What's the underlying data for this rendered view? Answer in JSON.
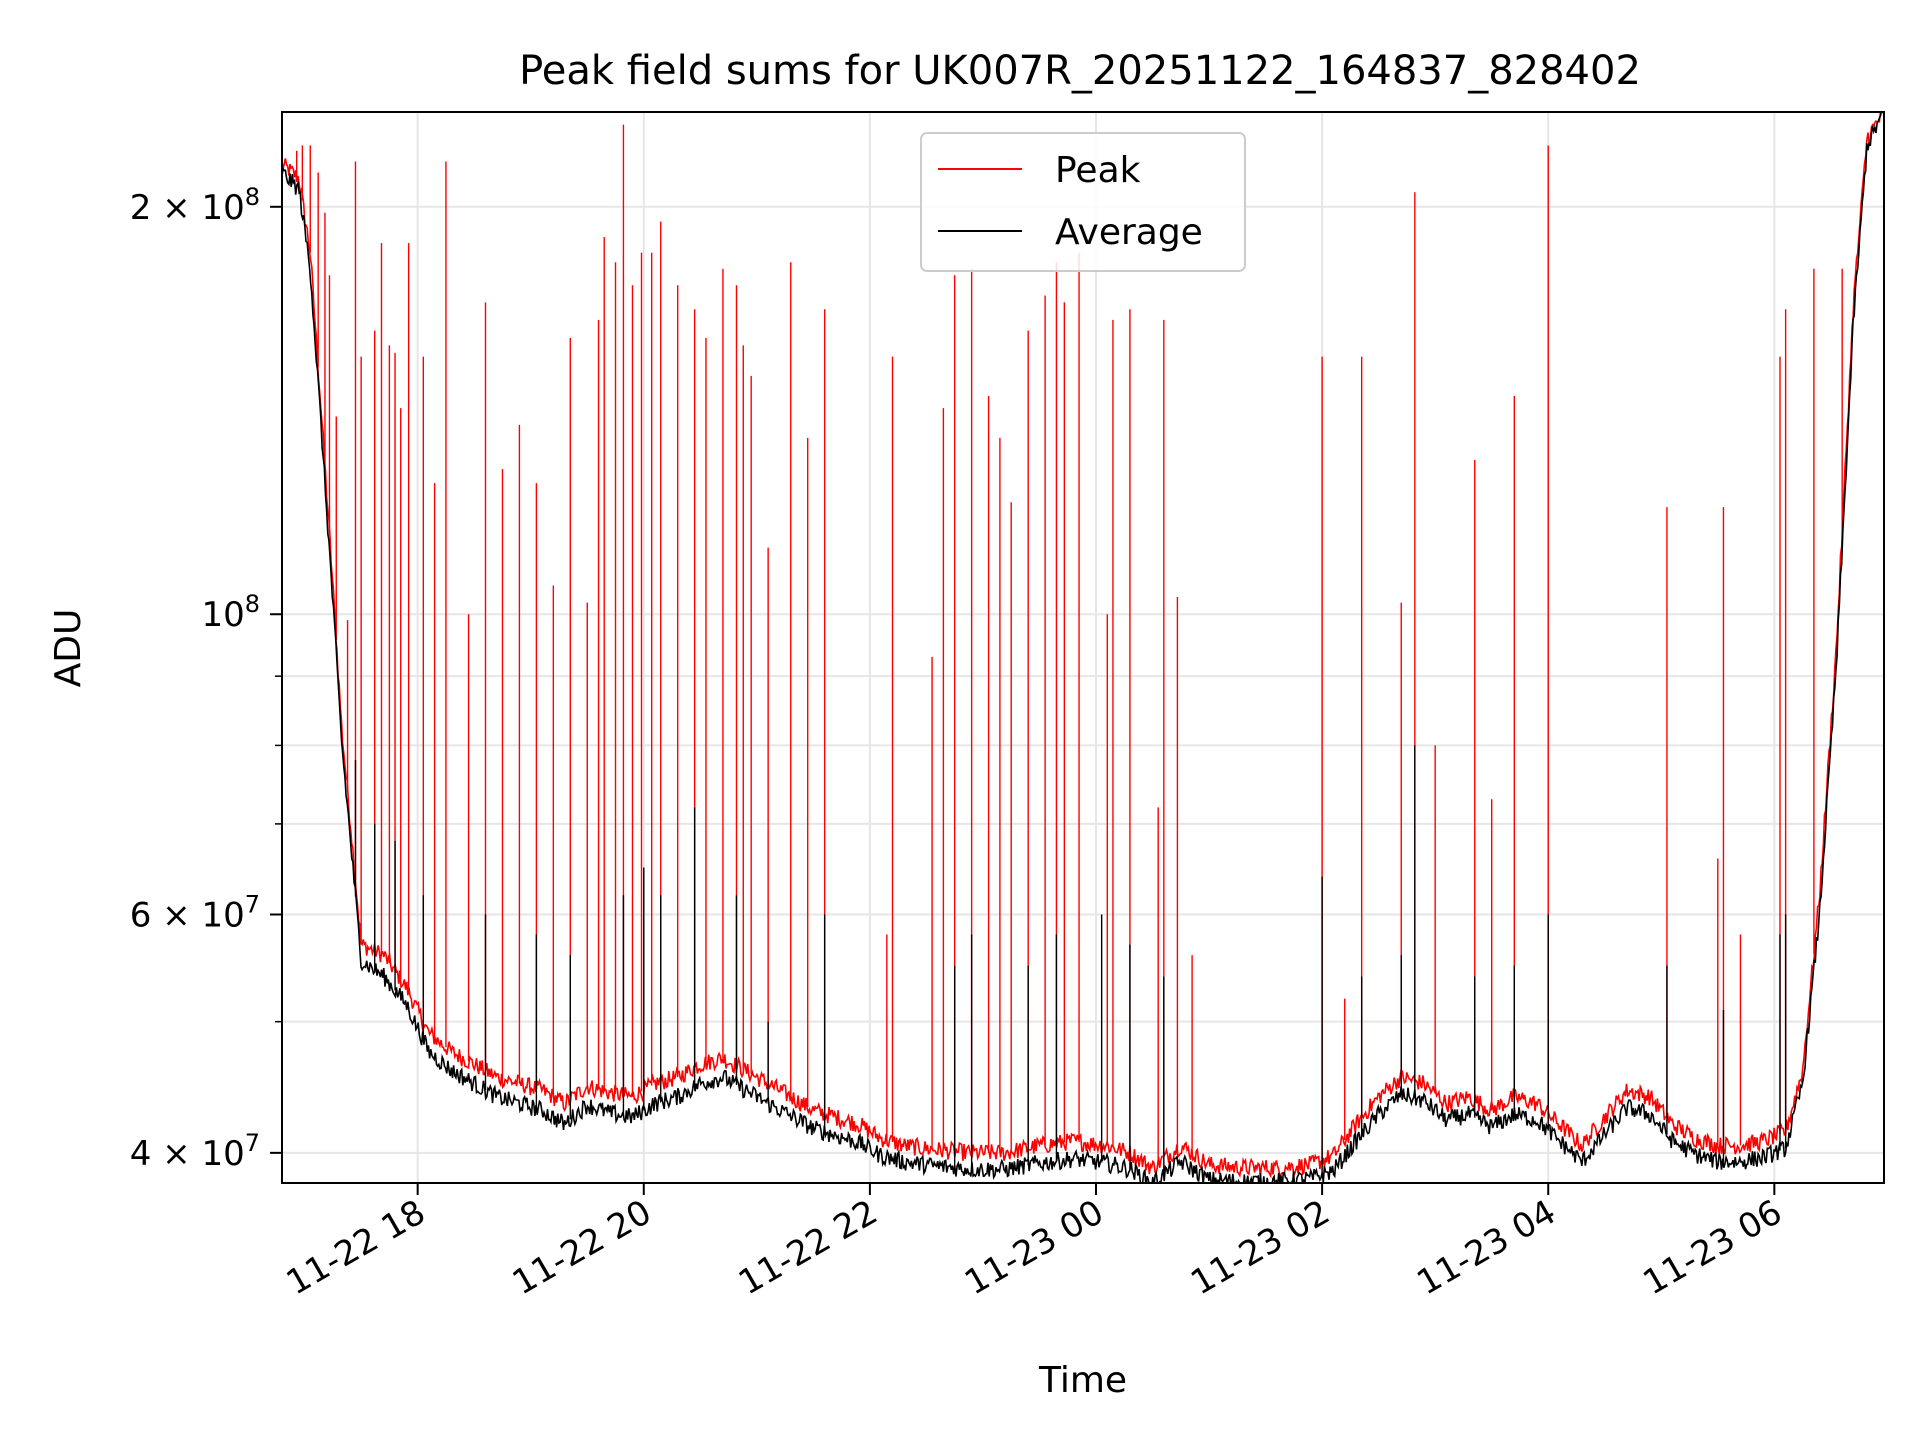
{
  "chart_data": {
    "type": "line",
    "title": "Peak field sums for UK007R_20251122_164837_828402",
    "xlabel": "Time",
    "ylabel": "ADU",
    "yscale": "log",
    "ylim": [
      38000000,
      235000000
    ],
    "xlim_hours": [
      16.8,
      30.97
    ],
    "grid": true,
    "legend_position": "top-center",
    "x_ticks": [
      {
        "hour": 18,
        "label": "11-22 18"
      },
      {
        "hour": 20,
        "label": "11-22 20"
      },
      {
        "hour": 22,
        "label": "11-22 22"
      },
      {
        "hour": 24,
        "label": "11-23 00"
      },
      {
        "hour": 26,
        "label": "11-23 02"
      },
      {
        "hour": 28,
        "label": "11-23 04"
      },
      {
        "hour": 30,
        "label": "11-23 06"
      }
    ],
    "y_major_ticks": [
      {
        "value": 40000000,
        "base": "4 × 10",
        "exp": "7"
      },
      {
        "value": 60000000,
        "base": "6 × 10",
        "exp": "7"
      },
      {
        "value": 100000000,
        "base": "10",
        "exp": "8"
      },
      {
        "value": 200000000,
        "base": "2 × 10",
        "exp": "8"
      }
    ],
    "y_minor_ticks": [
      50000000,
      70000000,
      80000000,
      90000000
    ],
    "series": [
      {
        "name": "Peak",
        "color": "#ff0000",
        "baseline": [
          [
            16.8,
            215000000
          ],
          [
            16.95,
            210000000
          ],
          [
            17.05,
            185000000
          ],
          [
            17.15,
            140000000
          ],
          [
            17.25,
            105000000
          ],
          [
            17.33,
            82000000
          ],
          [
            17.42,
            68000000
          ],
          [
            17.5,
            57000000
          ],
          [
            17.7,
            56000000
          ],
          [
            17.9,
            53000000
          ],
          [
            18.1,
            49000000
          ],
          [
            18.3,
            47500000
          ],
          [
            18.5,
            46500000
          ],
          [
            18.7,
            45500000
          ],
          [
            18.9,
            45000000
          ],
          [
            19.1,
            44500000
          ],
          [
            19.3,
            43500000
          ],
          [
            19.5,
            44800000
          ],
          [
            19.7,
            44300000
          ],
          [
            19.9,
            44000000
          ],
          [
            20.1,
            45000000
          ],
          [
            20.3,
            45500000
          ],
          [
            20.5,
            46500000
          ],
          [
            20.7,
            47000000
          ],
          [
            20.9,
            46000000
          ],
          [
            21.1,
            45000000
          ],
          [
            21.3,
            44000000
          ],
          [
            21.5,
            43000000
          ],
          [
            21.7,
            42500000
          ],
          [
            21.9,
            42000000
          ],
          [
            22.1,
            41000000
          ],
          [
            22.3,
            40500000
          ],
          [
            22.6,
            40200000
          ],
          [
            22.9,
            40000000
          ],
          [
            23.2,
            40000000
          ],
          [
            23.5,
            40500000
          ],
          [
            23.8,
            40800000
          ],
          [
            24.1,
            40500000
          ],
          [
            24.3,
            40000000
          ],
          [
            24.5,
            39000000
          ],
          [
            24.75,
            40500000
          ],
          [
            25.0,
            39200000
          ],
          [
            25.3,
            39000000
          ],
          [
            25.6,
            39000000
          ],
          [
            25.9,
            39200000
          ],
          [
            26.1,
            39800000
          ],
          [
            26.3,
            42000000
          ],
          [
            26.5,
            44000000
          ],
          [
            26.7,
            45500000
          ],
          [
            26.9,
            45000000
          ],
          [
            27.1,
            43500000
          ],
          [
            27.3,
            44000000
          ],
          [
            27.5,
            43000000
          ],
          [
            27.7,
            44000000
          ],
          [
            27.9,
            43500000
          ],
          [
            28.1,
            42000000
          ],
          [
            28.3,
            40500000
          ],
          [
            28.5,
            42500000
          ],
          [
            28.7,
            44500000
          ],
          [
            28.9,
            44000000
          ],
          [
            29.1,
            42000000
          ],
          [
            29.3,
            41000000
          ],
          [
            29.5,
            40500000
          ],
          [
            29.7,
            40500000
          ],
          [
            29.9,
            40800000
          ],
          [
            30.1,
            41500000
          ],
          [
            30.25,
            46000000
          ],
          [
            30.4,
            62000000
          ],
          [
            30.55,
            95000000
          ],
          [
            30.7,
            170000000
          ],
          [
            30.82,
            225000000
          ],
          [
            30.97,
            235000000
          ]
        ],
        "spikes": [
          [
            16.93,
            220000000
          ],
          [
            16.98,
            222000000
          ],
          [
            17.05,
            222000000
          ],
          [
            17.12,
            212000000
          ],
          [
            17.18,
            198000000
          ],
          [
            17.22,
            178000000
          ],
          [
            17.28,
            140000000
          ],
          [
            17.38,
            99000000
          ],
          [
            17.45,
            216000000
          ],
          [
            17.5,
            155000000
          ],
          [
            17.62,
            162000000
          ],
          [
            17.68,
            188000000
          ],
          [
            17.75,
            158000000
          ],
          [
            17.8,
            156000000
          ],
          [
            17.85,
            142000000
          ],
          [
            17.92,
            188000000
          ],
          [
            18.05,
            155000000
          ],
          [
            18.15,
            125000000
          ],
          [
            18.25,
            216000000
          ],
          [
            18.45,
            100000000
          ],
          [
            18.6,
            170000000
          ],
          [
            18.75,
            128000000
          ],
          [
            18.9,
            138000000
          ],
          [
            19.05,
            125000000
          ],
          [
            19.2,
            105000000
          ],
          [
            19.35,
            160000000
          ],
          [
            19.5,
            102000000
          ],
          [
            19.6,
            165000000
          ],
          [
            19.65,
            190000000
          ],
          [
            19.75,
            182000000
          ],
          [
            19.82,
            230000000
          ],
          [
            19.9,
            175000000
          ],
          [
            19.98,
            185000000
          ],
          [
            20.07,
            185000000
          ],
          [
            20.15,
            195000000
          ],
          [
            20.3,
            175000000
          ],
          [
            20.45,
            168000000
          ],
          [
            20.55,
            160000000
          ],
          [
            20.7,
            180000000
          ],
          [
            20.82,
            175000000
          ],
          [
            20.88,
            158000000
          ],
          [
            20.95,
            150000000
          ],
          [
            21.1,
            112000000
          ],
          [
            21.3,
            182000000
          ],
          [
            21.45,
            135000000
          ],
          [
            21.6,
            168000000
          ],
          [
            22.15,
            58000000
          ],
          [
            22.2,
            155000000
          ],
          [
            22.55,
            93000000
          ],
          [
            22.65,
            142000000
          ],
          [
            22.75,
            178000000
          ],
          [
            22.9,
            180000000
          ],
          [
            23.05,
            145000000
          ],
          [
            23.15,
            135000000
          ],
          [
            23.25,
            121000000
          ],
          [
            23.4,
            162000000
          ],
          [
            23.55,
            172000000
          ],
          [
            23.65,
            182000000
          ],
          [
            23.72,
            170000000
          ],
          [
            23.85,
            185000000
          ],
          [
            24.1,
            100000000
          ],
          [
            24.15,
            165000000
          ],
          [
            24.3,
            168000000
          ],
          [
            24.55,
            72000000
          ],
          [
            24.6,
            165000000
          ],
          [
            24.72,
            103000000
          ],
          [
            24.85,
            56000000
          ],
          [
            26.0,
            155000000
          ],
          [
            26.2,
            52000000
          ],
          [
            26.35,
            155000000
          ],
          [
            26.7,
            102000000
          ],
          [
            26.82,
            205000000
          ],
          [
            27.0,
            80000000
          ],
          [
            27.35,
            130000000
          ],
          [
            27.5,
            73000000
          ],
          [
            27.7,
            145000000
          ],
          [
            28.0,
            222000000
          ],
          [
            29.05,
            120000000
          ],
          [
            29.5,
            66000000
          ],
          [
            29.55,
            120000000
          ],
          [
            29.7,
            58000000
          ],
          [
            30.05,
            155000000
          ],
          [
            30.1,
            168000000
          ],
          [
            30.35,
            180000000
          ],
          [
            30.6,
            180000000
          ]
        ]
      },
      {
        "name": "Average",
        "color": "#000000",
        "baseline": [
          [
            16.8,
            212000000
          ],
          [
            16.95,
            206000000
          ],
          [
            17.05,
            180000000
          ],
          [
            17.15,
            136000000
          ],
          [
            17.25,
            102000000
          ],
          [
            17.33,
            80000000
          ],
          [
            17.42,
            66000000
          ],
          [
            17.5,
            55500000
          ],
          [
            17.7,
            54000000
          ],
          [
            17.9,
            51500000
          ],
          [
            18.1,
            47500000
          ],
          [
            18.3,
            46000000
          ],
          [
            18.5,
            45000000
          ],
          [
            18.7,
            44000000
          ],
          [
            18.9,
            43500000
          ],
          [
            19.1,
            43000000
          ],
          [
            19.3,
            42000000
          ],
          [
            19.5,
            43400000
          ],
          [
            19.7,
            42800000
          ],
          [
            19.9,
            42500000
          ],
          [
            20.1,
            43500000
          ],
          [
            20.3,
            44000000
          ],
          [
            20.5,
            45000000
          ],
          [
            20.7,
            45500000
          ],
          [
            20.9,
            44500000
          ],
          [
            21.1,
            43500000
          ],
          [
            21.3,
            42600000
          ],
          [
            21.5,
            41700000
          ],
          [
            21.7,
            41200000
          ],
          [
            21.9,
            40700000
          ],
          [
            22.1,
            39800000
          ],
          [
            22.3,
            39400000
          ],
          [
            22.6,
            39100000
          ],
          [
            22.9,
            38900000
          ],
          [
            23.2,
            38900000
          ],
          [
            23.5,
            39300000
          ],
          [
            23.8,
            39600000
          ],
          [
            24.1,
            39300000
          ],
          [
            24.3,
            38900000
          ],
          [
            24.5,
            38000000
          ],
          [
            24.75,
            39400000
          ],
          [
            25.0,
            38200000
          ],
          [
            25.3,
            38100000
          ],
          [
            25.6,
            38100000
          ],
          [
            25.9,
            38300000
          ],
          [
            26.1,
            38800000
          ],
          [
            26.3,
            40800000
          ],
          [
            26.5,
            42700000
          ],
          [
            26.7,
            44200000
          ],
          [
            26.9,
            43700000
          ],
          [
            27.1,
            42300000
          ],
          [
            27.3,
            42700000
          ],
          [
            27.5,
            41800000
          ],
          [
            27.7,
            42700000
          ],
          [
            27.9,
            42300000
          ],
          [
            28.1,
            40800000
          ],
          [
            28.3,
            39400000
          ],
          [
            28.5,
            41300000
          ],
          [
            28.7,
            43200000
          ],
          [
            28.9,
            42700000
          ],
          [
            29.1,
            40800000
          ],
          [
            29.3,
            39900000
          ],
          [
            29.5,
            39400000
          ],
          [
            29.7,
            39400000
          ],
          [
            29.9,
            39700000
          ],
          [
            30.1,
            40300000
          ],
          [
            30.25,
            45000000
          ],
          [
            30.4,
            60000000
          ],
          [
            30.55,
            92000000
          ],
          [
            30.7,
            165000000
          ],
          [
            30.82,
            222000000
          ],
          [
            30.97,
            235000000
          ]
        ],
        "spikes": [
          [
            17.45,
            78000000
          ],
          [
            17.62,
            70000000
          ],
          [
            17.8,
            68000000
          ],
          [
            18.05,
            62000000
          ],
          [
            18.6,
            60000000
          ],
          [
            19.05,
            58000000
          ],
          [
            19.35,
            56000000
          ],
          [
            19.82,
            62000000
          ],
          [
            20.0,
            65000000
          ],
          [
            20.15,
            62000000
          ],
          [
            20.45,
            72000000
          ],
          [
            20.82,
            62000000
          ],
          [
            21.1,
            50000000
          ],
          [
            21.6,
            60000000
          ],
          [
            22.75,
            55000000
          ],
          [
            22.9,
            58000000
          ],
          [
            23.4,
            55000000
          ],
          [
            23.65,
            58000000
          ],
          [
            24.05,
            60000000
          ],
          [
            24.3,
            57000000
          ],
          [
            24.6,
            54000000
          ],
          [
            26.0,
            64000000
          ],
          [
            26.35,
            54000000
          ],
          [
            26.7,
            56000000
          ],
          [
            26.82,
            80000000
          ],
          [
            27.35,
            54000000
          ],
          [
            27.7,
            55000000
          ],
          [
            28.0,
            60000000
          ],
          [
            29.05,
            55000000
          ],
          [
            29.55,
            51000000
          ],
          [
            30.05,
            58000000
          ],
          [
            30.1,
            60000000
          ]
        ]
      }
    ]
  }
}
